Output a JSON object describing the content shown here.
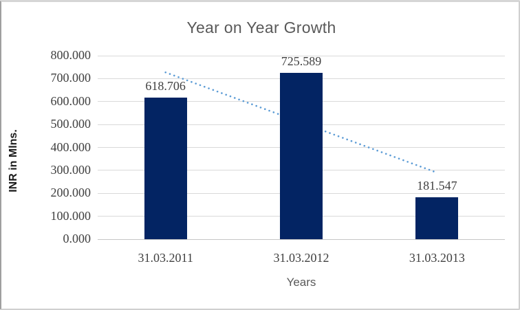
{
  "window": {
    "background": "#ffffff",
    "frame_border_color": "#cfcfcf"
  },
  "chart_data": {
    "type": "bar",
    "title": "Year on Year Growth",
    "categories": [
      "31.03.2011",
      "31.03.2012",
      "31.03.2013"
    ],
    "series": [
      {
        "name": "INR in Mlns.",
        "values": [
          618.706,
          725.589,
          181.547
        ]
      }
    ],
    "data_labels": [
      "618.706",
      "725.589",
      "181.547"
    ],
    "xlabel": "Years",
    "ylabel": "INR in Mlns.",
    "ylim": [
      0,
      800
    ],
    "ytick_step": 100,
    "ytick_labels": [
      "0.000",
      "100.000",
      "200.000",
      "300.000",
      "400.000",
      "500.000",
      "600.000",
      "700.000",
      "800.000"
    ],
    "grid": true,
    "legend": "none",
    "bar_color": "#032463",
    "gridline_color": "#d9d9d9",
    "label_color": "#404040",
    "title_color": "#595959",
    "trendline": {
      "type": "linear",
      "style": "dotted",
      "color": "#5b9bd5",
      "start_value": 727.2,
      "end_value": 290.0
    }
  }
}
